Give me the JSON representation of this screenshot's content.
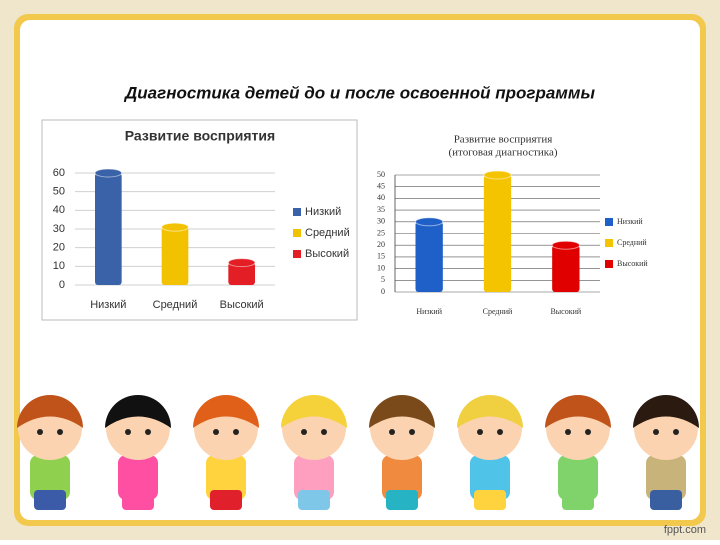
{
  "slide": {
    "title": "Диагностика детей до и после освоенной программы",
    "footer": "fppt.com"
  },
  "chart_data": [
    {
      "type": "bar",
      "title": [
        "Развитие восприятия"
      ],
      "categories": [
        "Низкий",
        "Средний",
        "Высокий"
      ],
      "values": [
        60,
        31,
        12
      ],
      "colors": [
        "#3a62a8",
        "#f2c200",
        "#e31e24"
      ],
      "ylim": [
        0,
        60
      ],
      "yticks": [
        0,
        10,
        20,
        30,
        40,
        50,
        60
      ],
      "grid": true,
      "legend": "right"
    },
    {
      "type": "bar",
      "title": [
        "Развитие восприятия",
        "(итоговая диагностика)"
      ],
      "categories": [
        "Низкий",
        "Средний",
        "Высокий"
      ],
      "values": [
        30,
        50,
        20
      ],
      "colors": [
        "#1f5fc8",
        "#f5c400",
        "#e00000"
      ],
      "ylim": [
        0,
        50
      ],
      "yticks": [
        0,
        5,
        10,
        15,
        20,
        25,
        30,
        35,
        40,
        45,
        50
      ],
      "grid": true,
      "legend": "right"
    }
  ]
}
